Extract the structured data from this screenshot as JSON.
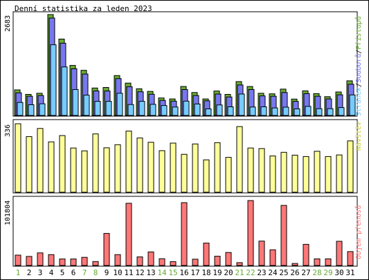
{
  "title": "Denní statistika za leden 2023",
  "colors": {
    "pristupy": "#66aa33",
    "soubory": "#7777ee",
    "stranky": "#77ccff",
    "navstevy": "#ffff99",
    "prenosy": "#ff7777",
    "weekend_label": "#66aa33",
    "weekday_label": "#000000"
  },
  "chart_data": [
    {
      "type": "bar",
      "panel": "top",
      "max_label": "2683",
      "ylim": [
        0,
        2683
      ],
      "grid": false,
      "legend": "right (vertical)",
      "legend_parts": {
        "stranky": "Stránek",
        "soubory": "Souborů",
        "pristupy": "Přístupů",
        "separator": "/"
      },
      "categories": [
        "1",
        "2",
        "3",
        "4",
        "5",
        "6",
        "7",
        "8",
        "9",
        "10",
        "11",
        "12",
        "13",
        "14",
        "15",
        "16",
        "17",
        "18",
        "19",
        "20",
        "21",
        "22",
        "23",
        "24",
        "25",
        "26",
        "27",
        "28",
        "29",
        "30",
        "31"
      ],
      "weekend_days": [
        "1",
        "7",
        "8",
        "14",
        "15",
        "21",
        "22",
        "28",
        "29"
      ],
      "series": [
        {
          "name": "Přístupů",
          "values": [
            680,
            560,
            590,
            2683,
            2030,
            1330,
            1200,
            730,
            745,
            1060,
            860,
            710,
            640,
            465,
            440,
            770,
            610,
            440,
            650,
            560,
            900,
            770,
            590,
            575,
            700,
            435,
            655,
            580,
            500,
            625,
            920
          ]
        },
        {
          "name": "Souborů",
          "values": [
            600,
            510,
            530,
            2590,
            1920,
            1240,
            1100,
            650,
            650,
            980,
            765,
            630,
            565,
            400,
            380,
            690,
            530,
            390,
            570,
            490,
            810,
            690,
            520,
            510,
            610,
            375,
            580,
            510,
            440,
            550,
            830
          ]
        },
        {
          "name": "Stránek",
          "values": [
            345,
            285,
            310,
            1880,
            1290,
            690,
            540,
            375,
            375,
            590,
            290,
            375,
            295,
            265,
            225,
            380,
            305,
            175,
            280,
            230,
            570,
            225,
            230,
            200,
            220,
            175,
            240,
            180,
            180,
            210,
            545
          ]
        }
      ]
    },
    {
      "type": "bar",
      "panel": "middle",
      "max_label": "336",
      "ylim": [
        0,
        336
      ],
      "grid": false,
      "legend": "right (vertical)",
      "legend_text": "Návštěv",
      "categories": [
        "1",
        "2",
        "3",
        "4",
        "5",
        "6",
        "7",
        "8",
        "9",
        "10",
        "11",
        "12",
        "13",
        "14",
        "15",
        "16",
        "17",
        "18",
        "19",
        "20",
        "21",
        "22",
        "23",
        "24",
        "25",
        "26",
        "27",
        "28",
        "29",
        "30",
        "31"
      ],
      "series": [
        {
          "name": "Návštěv",
          "values": [
            336,
            273,
            313,
            247,
            278,
            217,
            203,
            286,
            218,
            233,
            300,
            266,
            245,
            204,
            241,
            186,
            237,
            159,
            243,
            171,
            322,
            217,
            214,
            178,
            196,
            182,
            175,
            201,
            175,
            183,
            252
          ]
        }
      ]
    },
    {
      "type": "bar",
      "panel": "bottom",
      "max_label": "101804",
      "ylim": [
        0,
        101804
      ],
      "grid": false,
      "legend": "right (vertical)",
      "legend_text": "Objem přenosů",
      "categories": [
        "1",
        "2",
        "3",
        "4",
        "5",
        "6",
        "7",
        "8",
        "9",
        "10",
        "11",
        "12",
        "13",
        "14",
        "15",
        "16",
        "17",
        "18",
        "19",
        "20",
        "21",
        "22",
        "23",
        "24",
        "25",
        "26",
        "27",
        "28",
        "29",
        "30",
        "31"
      ],
      "series": [
        {
          "name": "Objem přenosů",
          "values": [
            15700,
            13700,
            19100,
            16500,
            9900,
            9900,
            12400,
            6000,
            48700,
            16500,
            94500,
            13000,
            20600,
            10300,
            5800,
            95400,
            9500,
            34000,
            14100,
            19700,
            4300,
            98600,
            37000,
            23800,
            91200,
            3000,
            32100,
            10100,
            10100,
            36700,
            21100
          ]
        }
      ]
    }
  ]
}
